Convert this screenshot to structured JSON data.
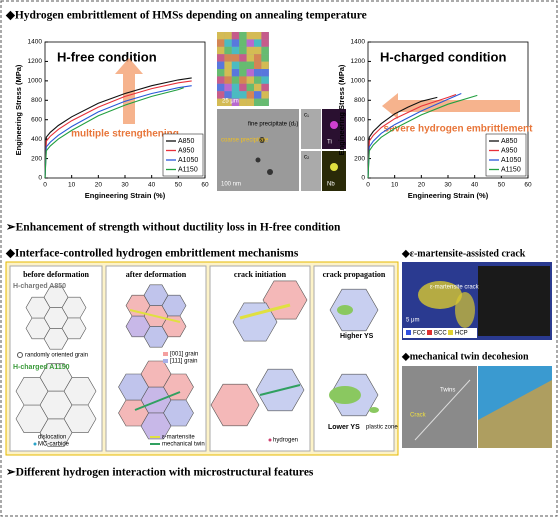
{
  "header": {
    "title": "◆Hydrogen embrittlement of HMSs depending on annealing temperature"
  },
  "chart_data": [
    {
      "type": "line",
      "title": "H-free condition",
      "x_label": "Engineering Strain (%)",
      "y_label": "Engineering Stress (MPa)",
      "annotation": "multiple strengthening",
      "annotation_direction": "up",
      "xlim": [
        0,
        60
      ],
      "xticks": [
        0,
        10,
        20,
        30,
        40,
        50,
        60
      ],
      "ylim": [
        0,
        1400
      ],
      "yticks": [
        0,
        200,
        400,
        600,
        800,
        1000,
        1200,
        1400
      ],
      "legend": "lower right",
      "series": [
        {
          "name": "A850",
          "color": "#111111",
          "x": [
            0,
            0.5,
            2,
            5,
            10,
            20,
            30,
            40,
            50,
            55
          ],
          "values": [
            0,
            420,
            470,
            540,
            630,
            770,
            870,
            950,
            1010,
            1030
          ]
        },
        {
          "name": "A950",
          "color": "#e8303a",
          "x": [
            0,
            0.5,
            2,
            5,
            10,
            20,
            30,
            40,
            50,
            55
          ],
          "values": [
            0,
            380,
            430,
            500,
            590,
            730,
            840,
            920,
            980,
            1000
          ]
        },
        {
          "name": "A1050",
          "color": "#2a58d8",
          "x": [
            0,
            0.5,
            2,
            5,
            10,
            20,
            30,
            40,
            50,
            55
          ],
          "values": [
            0,
            320,
            370,
            440,
            530,
            680,
            790,
            870,
            930,
            950
          ]
        },
        {
          "name": "A1150",
          "color": "#22a040",
          "x": [
            0,
            0.5,
            2,
            5,
            10,
            20,
            30,
            40,
            50,
            52
          ],
          "values": [
            0,
            280,
            330,
            400,
            490,
            640,
            750,
            840,
            910,
            930
          ]
        }
      ]
    },
    {
      "type": "line",
      "title": "H-charged condition",
      "x_label": "Engineering Strain (%)",
      "y_label": "Engineering Stress (MPa)",
      "annotation": "severe hydrogen embrittlement",
      "annotation_direction": "left",
      "xlim": [
        0,
        60
      ],
      "xticks": [
        0,
        10,
        20,
        30,
        40,
        50,
        60
      ],
      "ylim": [
        0,
        1400
      ],
      "yticks": [
        0,
        200,
        400,
        600,
        800,
        1000,
        1200,
        1400
      ],
      "legend": "lower right",
      "series": [
        {
          "name": "A850",
          "color": "#111111",
          "x": [
            0,
            0.5,
            2,
            5,
            10,
            15,
            20,
            26
          ],
          "values": [
            0,
            420,
            480,
            560,
            660,
            730,
            790,
            830
          ]
        },
        {
          "name": "A950",
          "color": "#e8303a",
          "x": [
            0,
            0.5,
            2,
            5,
            10,
            20,
            30,
            33
          ],
          "values": [
            0,
            380,
            440,
            520,
            610,
            740,
            830,
            860
          ]
        },
        {
          "name": "A1050",
          "color": "#2a58d8",
          "x": [
            0,
            0.5,
            2,
            5,
            10,
            20,
            30,
            35
          ],
          "values": [
            0,
            320,
            380,
            460,
            550,
            690,
            810,
            870
          ]
        },
        {
          "name": "A1150",
          "color": "#22a040",
          "x": [
            0,
            0.5,
            2,
            5,
            10,
            20,
            30,
            41
          ],
          "values": [
            0,
            280,
            340,
            420,
            510,
            650,
            760,
            850
          ]
        }
      ]
    }
  ],
  "micrograph": {
    "scale_ebsd": "25 μm",
    "fine": "fine precipitate (d₂)",
    "coarse": "coarse precipitate",
    "scale_tem": "100 nm",
    "c1": "c₁",
    "c2": "c₂",
    "ti": "Ti",
    "nb": "Nb"
  },
  "section2": "➢Enhancement of strength without ductility loss in H-free condition",
  "section3": "◆Interface-controlled hydrogen embrittlement mechanisms",
  "mechanisms": {
    "p1": "before deformation",
    "p2": "after deformation",
    "p3": "crack initiation",
    "p4": "crack propagation",
    "a850": "H-charged A850",
    "random": "randomly oriented grain",
    "a1150": "H-charged A1150",
    "disl": "dislocation",
    "mc": "MC-carbide",
    "g001": "[001] grain",
    "g111": "[111] grain",
    "eps": "ε-martensite",
    "twin": "mechanical twin",
    "hyd": "hydrogen",
    "higher": "Higher YS",
    "lower": "Lower YS",
    "plastic": "plastic zone"
  },
  "eps_crack": {
    "title": "◆ε-martensite-assisted crack",
    "fcc": "FCC",
    "bcc": "BCC",
    "hcp": "HCP",
    "scale": "5 μm",
    "label": "ε-martensite crack"
  },
  "twin_decohesion": {
    "title": "◆mechanical twin decohesion",
    "twins": "Twins",
    "crack": "Crack"
  },
  "footer": "➢Different hydrogen interaction with microstructural features"
}
